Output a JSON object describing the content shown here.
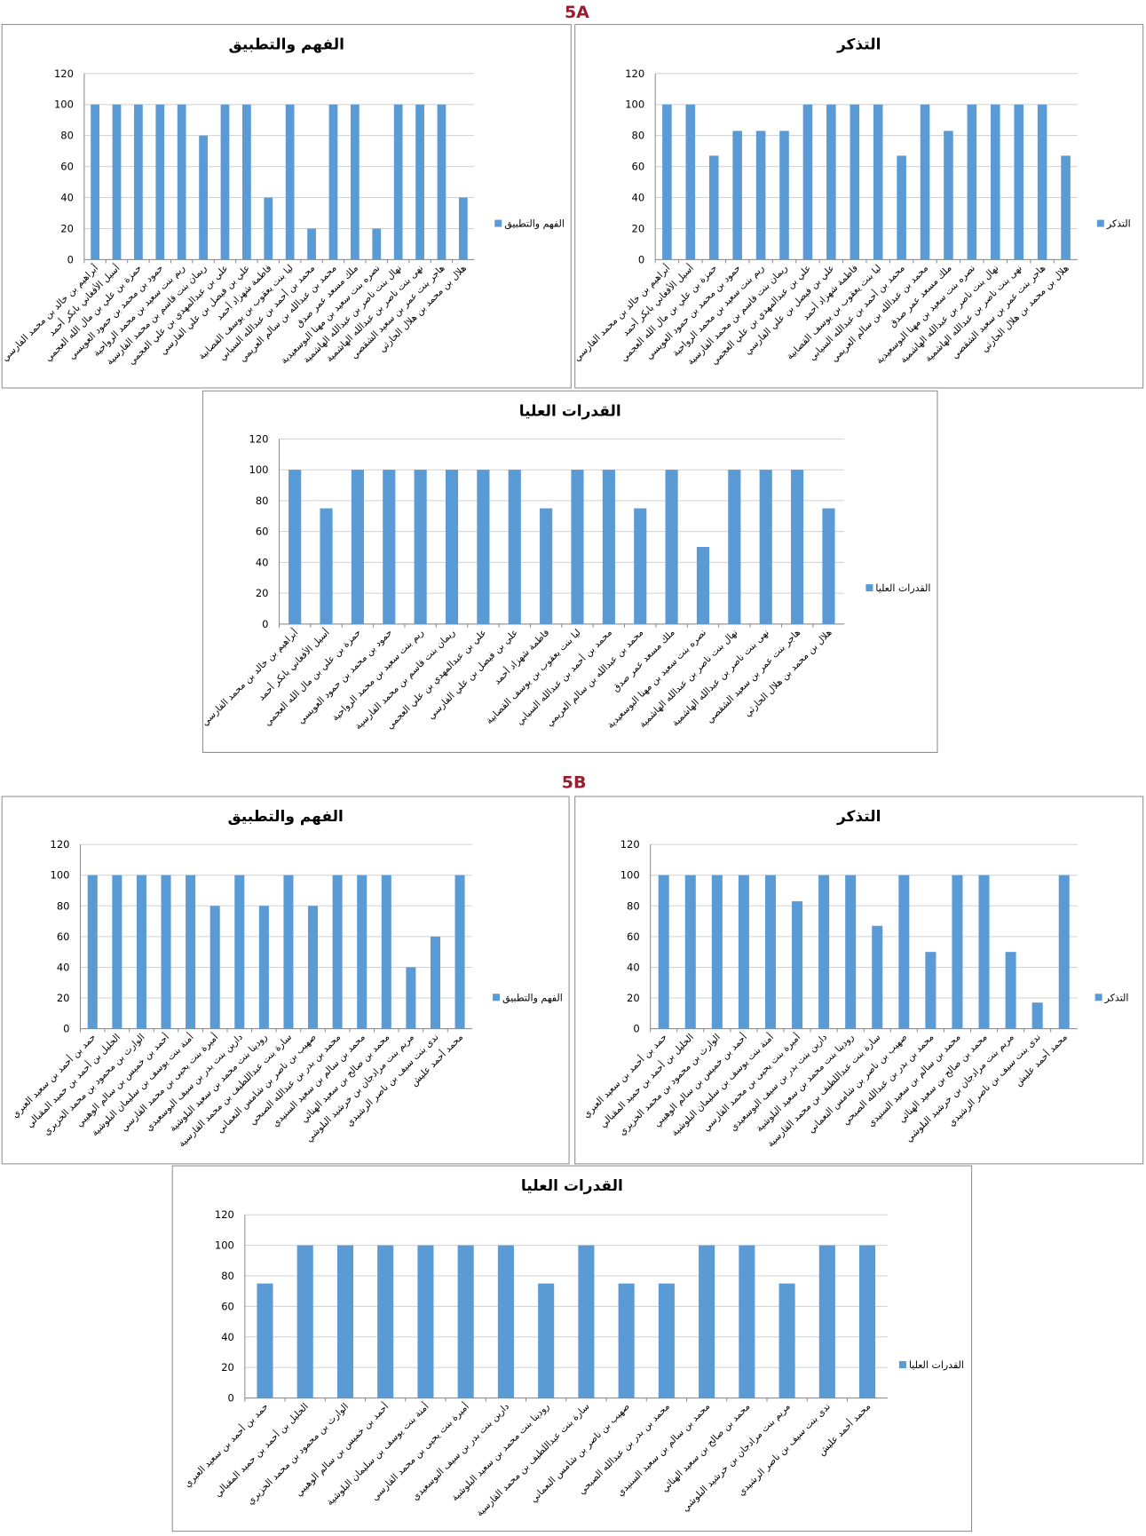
{
  "sections": [
    "5A",
    "5B"
  ],
  "chart_data": [
    {
      "type": "bar",
      "title": "الفهم والتطبيق",
      "categories": [
        "أبراهيم بن خالد بن محمد الفارسي",
        "أسيل الأفغاني بابكر أحمد",
        "حمزة بن علي بن مال الله العجمي",
        "حمود بن محمد بن حمود العويسي",
        "ريم بنت سعيد بن محمد الرواحية",
        "ريمان بنت قاسم بن محمد الفارسية",
        "علي بن عبدالمهدي بن علي العجمي",
        "علي بن فيصل بن علي الفارسي",
        "فاطمة شهزاد أحمد",
        "ليا بنت يعقوب بن يوسف القصابية",
        "محمد بن أحمد بن عبدالله السيابي",
        "محمد بن عبدالله بن سالم العريمي",
        "ملك مسعد عمر صدق",
        "نصره بنت سعيد بن مهنا البوسعيدية",
        "نهال بنت ناصر بن عبدالله الهاشمية",
        "نهى بنت ناصر بن عبدالله الهاشمية",
        "هاجر بنت عمر بن سعيد الشقصي",
        "هلال بن محمد بن هلال الحارثي"
      ],
      "series": [
        {
          "name": "الفهم والتطبيق",
          "color": "#5b9bd5",
          "values": [
            100,
            100,
            100,
            100,
            100,
            80,
            100,
            100,
            40,
            100,
            20,
            100,
            100,
            20,
            100,
            100,
            100,
            40
          ]
        }
      ],
      "ylim": [
        0,
        120
      ],
      "yticks": [
        0,
        20,
        40,
        60,
        80,
        100,
        120
      ],
      "grid": true,
      "legend": "right"
    },
    {
      "type": "bar",
      "title": "التذكر",
      "categories": [
        "أبراهيم بن خالد بن محمد الفارسي",
        "أسيل الأفغاني بابكر أحمد",
        "حمزة بن علي بن مال الله العجمي",
        "حمود بن محمد بن حمود العويسي",
        "ريم بنت سعيد بن محمد الرواحية",
        "ريمان بنت قاسم بن محمد الفارسية",
        "علي بن عبدالمهدي بن علي العجمي",
        "علي بن فيصل بن علي الفارسي",
        "فاطمة شهزاد أحمد",
        "ليا بنت يعقوب بن يوسف القصابية",
        "محمد بن أحمد بن عبدالله السيابي",
        "محمد بن عبدالله بن سالم العريمي",
        "ملك مسعد عمر صدق",
        "نصره بنت سعيد بن مهنا البوسعيدية",
        "نهال بنت ناصر بن عبدالله الهاشمية",
        "نهى بنت ناصر بن عبدالله الهاشمية",
        "هاجر بنت عمر بن سعيد الشقصي",
        "هلال بن محمد بن هلال الحارثي"
      ],
      "series": [
        {
          "name": "التذكر",
          "color": "#5b9bd5",
          "values": [
            100,
            100,
            67,
            83,
            83,
            83,
            100,
            100,
            100,
            100,
            67,
            100,
            83,
            100,
            100,
            100,
            100,
            67
          ]
        }
      ],
      "ylim": [
        0,
        120
      ],
      "yticks": [
        0,
        20,
        40,
        60,
        80,
        100,
        120
      ],
      "grid": true,
      "legend": "right"
    },
    {
      "type": "bar",
      "title": "القدرات العليا",
      "categories": [
        "أبراهيم بن خالد بن محمد الفارسي",
        "أسيل الأفغاني بابكر أحمد",
        "حمزة بن علي بن مال الله العجمي",
        "حمود بن محمد بن حمود العويسي",
        "ريم بنت سعيد بن محمد الرواحية",
        "ريمان بنت قاسم بن محمد الفارسية",
        "علي بن عبدالمهدي بن علي العجمي",
        "علي بن فيصل بن علي الفارسي",
        "فاطمة شهزاد أحمد",
        "ليا بنت يعقوب بن يوسف القصابية",
        "محمد بن أحمد بن عبدالله السيابي",
        "محمد بن عبدالله بن سالم العريمي",
        "ملك مسعد عمر صدق",
        "نصره بنت سعيد بن مهنا البوسعيدية",
        "نهال بنت ناصر بن عبدالله الهاشمية",
        "نهى بنت ناصر بن عبدالله الهاشمية",
        "هاجر بنت عمر بن سعيد الشقصي",
        "هلال بن محمد بن هلال الحارثي"
      ],
      "series": [
        {
          "name": "القدرات العليا",
          "color": "#5b9bd5",
          "values": [
            100,
            75,
            100,
            100,
            100,
            100,
            100,
            100,
            75,
            100,
            100,
            75,
            100,
            50,
            100,
            100,
            100,
            75
          ]
        }
      ],
      "ylim": [
        0,
        120
      ],
      "yticks": [
        0,
        20,
        40,
        60,
        80,
        100,
        120
      ],
      "grid": true,
      "legend": "right"
    },
    {
      "type": "bar",
      "title": "الفهم والتطبيق",
      "categories": [
        "حمد بن أحمد بن سعيد العبري",
        "الخليل بن أحمد بن حميد المقبالي",
        "الوارث بن محمود بن محمد الخزيري",
        "أحمد بن خميس بن سالم الوهيبي",
        "أمنة بنت يوسف بن سليمان البلوشية",
        "أميرة بنت يحيى بن محمد القارسي",
        "دارين بنت بدر بن سيف البوسعيدي",
        "رودينا بنت محمد بن سعيد البلوشية",
        "سارة بنت عبداللطيف بن محمد القارسية",
        "صهيب بن ناصر بن شامس النعماني",
        "محمد بن بدر بن عبدالله الصبحي",
        "محمد بن سالم بن سعيد السنيدي",
        "محمد بن صالح بن سعيد الهنائي",
        "مريم بنت مرادجان بن خرشيد البلوشي",
        "ندى بنت سيف بن ناصر الرشيدي",
        "محمد أحمد عليش"
      ],
      "series": [
        {
          "name": "الفهم والتطبيق",
          "color": "#5b9bd5",
          "values": [
            100,
            100,
            100,
            100,
            100,
            80,
            100,
            80,
            100,
            80,
            100,
            100,
            100,
            40,
            60,
            100
          ]
        }
      ],
      "ylim": [
        0,
        120
      ],
      "yticks": [
        0,
        20,
        40,
        60,
        80,
        100,
        120
      ],
      "grid": true,
      "legend": "right"
    },
    {
      "type": "bar",
      "title": "التذكر",
      "categories": [
        "حمد بن أحمد بن سعيد العبري",
        "الخليل بن أحمد بن حميد المقبالي",
        "الوارث بن محمود بن محمد الخزيري",
        "أحمد بن خميس بن سالم الوهيبي",
        "أمنة بنت يوسف بن سليمان البلوشية",
        "أميرة بنت يحيى بن محمد القارسي",
        "دارين بنت بدر بن سيف البوسعيدي",
        "رودينا بنت محمد بن سعيد البلوشية",
        "سارة بنت عبداللطيف بن محمد القارسية",
        "صهيب بن ناصر بن شامس النعماني",
        "محمد بن بدر بن عبدالله الصبحي",
        "محمد بن سالم بن سعيد السنيدي",
        "محمد بن صالح بن سعيد الهنائي",
        "مريم بنت مرادجان بن خرشيد البلوشي",
        "ندى بنت سيف بن ناصر الرشيدي",
        "محمد أحمد عليش"
      ],
      "series": [
        {
          "name": "التذكر",
          "color": "#5b9bd5",
          "values": [
            100,
            100,
            100,
            100,
            100,
            83,
            100,
            100,
            67,
            100,
            50,
            100,
            100,
            50,
            17,
            100
          ]
        }
      ],
      "ylim": [
        0,
        120
      ],
      "yticks": [
        0,
        20,
        40,
        60,
        80,
        100,
        120
      ],
      "grid": true,
      "legend": "right"
    },
    {
      "type": "bar",
      "title": "القدرات العليا",
      "categories": [
        "حمد بن أحمد بن سعيد العبري",
        "الخليل بن أحمد بن حميد المقبالي",
        "الوارث بن محمود بن محمد الخزيري",
        "أحمد بن خميس بن سالم الوهيبي",
        "أمنة بنت يوسف بن سليمان البلوشية",
        "أميرة بنت يحيى بن محمد القارسي",
        "دارين بنت بدر بن سيف البوسعيدي",
        "رودينا بنت محمد بن سعيد البلوشية",
        "سارة بنت عبداللطيف بن محمد القارسية",
        "صهيب بن ناصر بن شامس النعماني",
        "محمد بن بدر بن عبدالله الصبحي",
        "محمد بن سالم بن سعيد السنيدي",
        "محمد بن صالح بن سعيد الهنائي",
        "مريم بنت مرادجان بن خرشيد البلوشي",
        "ندى بنت سيف بن ناصر الرشيدي",
        "محمد أحمد عليش"
      ],
      "series": [
        {
          "name": "القدرات العليا",
          "color": "#5b9bd5",
          "values": [
            75,
            100,
            100,
            100,
            100,
            100,
            100,
            75,
            100,
            75,
            75,
            100,
            100,
            75,
            100,
            100
          ]
        }
      ],
      "ylim": [
        0,
        120
      ],
      "yticks": [
        0,
        20,
        40,
        60,
        80,
        100,
        120
      ],
      "grid": true,
      "legend": "right"
    }
  ]
}
